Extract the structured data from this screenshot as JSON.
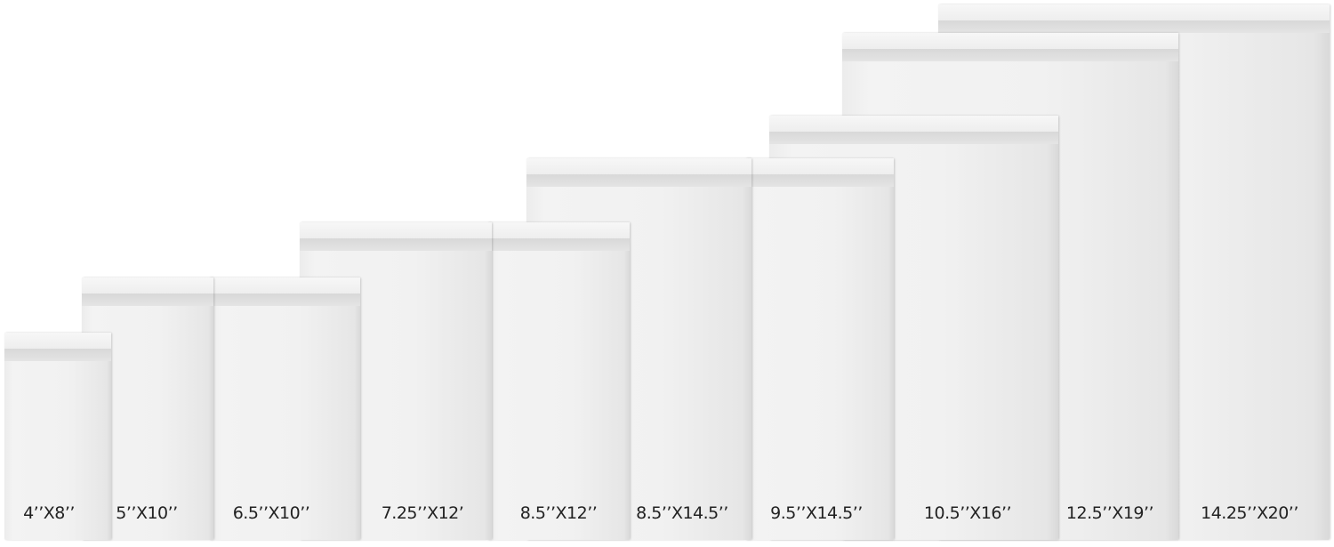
{
  "mailers": [
    {
      "label": "4’’X8’’"
    },
    {
      "label": "5’’X10’’"
    },
    {
      "label": "6.5’’X10’’"
    },
    {
      "label": "7.25’’X12’"
    },
    {
      "label": "8.5’’X12’’"
    },
    {
      "label": "8.5’’X14.5’’"
    },
    {
      "label": "9.5’’X14.5’’"
    },
    {
      "label": "10.5’’X16’’"
    },
    {
      "label": "12.5’’X19’’"
    },
    {
      "label": "14.25’’X20’’"
    }
  ],
  "colors": {
    "mailer": "#f1f1f1",
    "background": "#ffffff",
    "text": "#222222"
  }
}
